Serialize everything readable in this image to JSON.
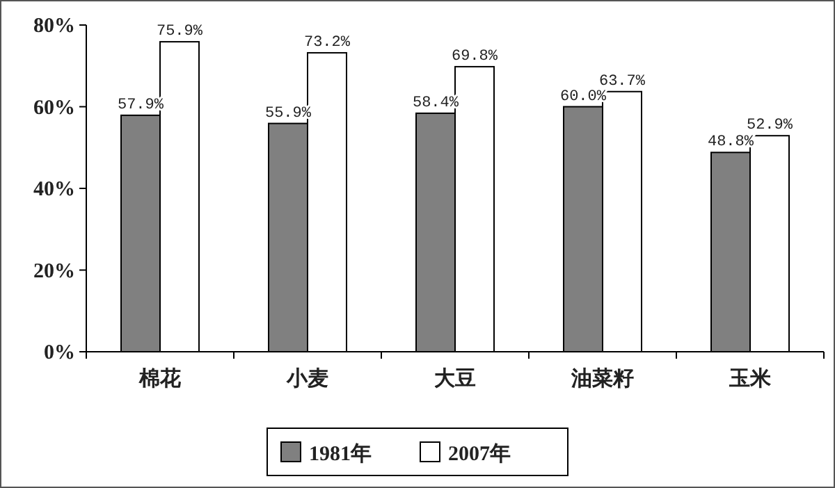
{
  "chart_data": {
    "type": "bar",
    "categories": [
      "棉花",
      "小麦",
      "大豆",
      "油菜籽",
      "玉米"
    ],
    "series": [
      {
        "name": "1981年",
        "color": "#808080",
        "values": [
          57.9,
          55.9,
          58.4,
          60.0,
          48.8
        ],
        "value_labels": [
          "57.9%",
          "55.9%",
          "58.4%",
          "60.0%",
          "48.8%"
        ]
      },
      {
        "name": "2007年",
        "color": "#ffffff",
        "values": [
          75.9,
          73.2,
          69.8,
          63.7,
          52.9
        ],
        "value_labels": [
          "75.9%",
          "73.2%",
          "69.8%",
          "63.7%",
          "52.9%"
        ]
      }
    ],
    "ylim": [
      0,
      80
    ],
    "yticks": [
      {
        "value": 0,
        "label": "0%"
      },
      {
        "value": 20,
        "label": "20%"
      },
      {
        "value": 40,
        "label": "40%"
      },
      {
        "value": 60,
        "label": "60%"
      },
      {
        "value": 80,
        "label": "80%"
      }
    ],
    "grid": false,
    "legend": "bottom"
  }
}
